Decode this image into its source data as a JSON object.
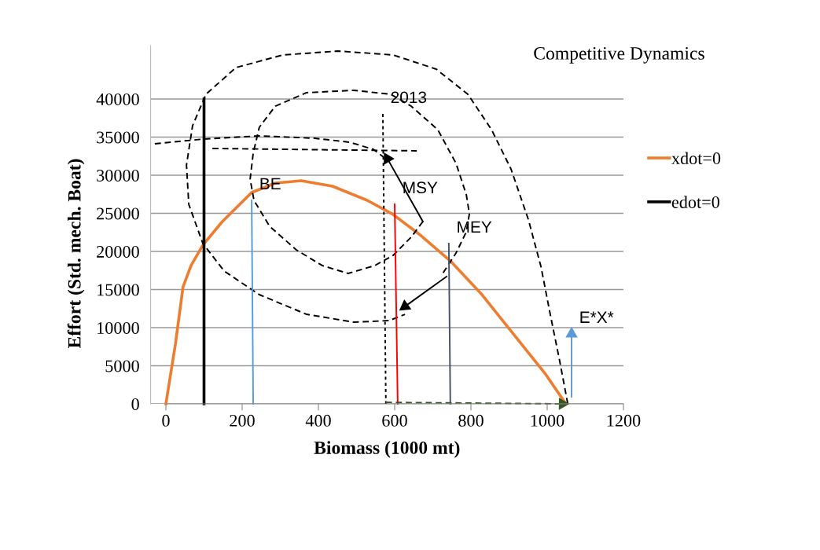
{
  "chart_data": {
    "type": "line",
    "title": "Competitive Dynamics",
    "xlabel": "Biomass (1000 mt)",
    "ylabel": "Effort (Std. mech. Boat)",
    "xlim": [
      -40,
      1200
    ],
    "ylim": [
      0,
      47000
    ],
    "xticks": [
      0,
      200,
      400,
      600,
      800,
      1000,
      1200
    ],
    "yticks": [
      0,
      5000,
      10000,
      15000,
      20000,
      25000,
      30000,
      35000,
      40000
    ],
    "grid": "y",
    "legend": "right",
    "line_style": "solid",
    "series": [
      {
        "name": "xdot=0",
        "color": "#ed7d31",
        "x": [
          0,
          25,
          45,
          66,
          97,
          148,
          225,
          287,
          355,
          437,
          528,
          596,
          664,
          746,
          829,
          911,
          994,
          1049
        ],
        "values": [
          0,
          7840,
          15360,
          18150,
          20830,
          23920,
          27730,
          28970,
          29280,
          28560,
          26700,
          24850,
          22270,
          18760,
          14330,
          9180,
          4020,
          0
        ]
      },
      {
        "name": "edot=0",
        "color": "#000000",
        "x": [
          100,
          100
        ],
        "values": [
          0,
          40000
        ]
      },
      {
        "color": "#000000",
        "line_style": "dashed",
        "x": [
          1054,
          1033,
          1008,
          984,
          951,
          905,
          854,
          792,
          709,
          596,
          452,
          307,
          184,
          105,
          70,
          54,
          60,
          97,
          153,
          245,
          369,
          493,
          586,
          627
        ],
        "values": [
          0,
          5570,
          11750,
          17940,
          24130,
          30830,
          35980,
          40620,
          43920,
          45780,
          46290,
          45780,
          44130,
          40620,
          36500,
          31340,
          26190,
          21030,
          17420,
          14330,
          11750,
          10720,
          10930,
          11750
        ]
      },
      {
        "color": "#000000",
        "line_style": "dashed",
        "x": [
          674,
          643,
          596,
          548,
          478,
          410,
          342,
          272,
          231,
          221,
          229,
          245,
          287,
          369,
          493,
          590,
          643,
          713,
          761,
          788,
          796,
          788,
          761,
          726
        ],
        "values": [
          23920,
          21860,
          19490,
          18150,
          17110,
          18150,
          20210,
          23300,
          26700,
          29490,
          32890,
          36290,
          39070,
          40830,
          41140,
          40620,
          39070,
          35980,
          31550,
          27420,
          24950,
          22580,
          19790,
          17110
        ]
      },
      {
        "color": "#000000",
        "line_style": "dashed",
        "x": [
          -29,
          101,
          245,
          390,
          482,
          544,
          571
        ],
        "values": [
          34130,
          34750,
          35160,
          34850,
          34330,
          33400,
          32370
        ]
      },
      {
        "color": "#000000",
        "line_style": "dashed",
        "x": [
          122,
          658
        ],
        "values": [
          33510,
          33200
        ]
      },
      {
        "color": "#000000",
        "line_style": "dotted",
        "x": [
          569,
          577
        ],
        "values": [
          38040,
          0
        ]
      },
      {
        "color": "#5b9bd5",
        "x": [
          229,
          225
        ],
        "values": [
          0,
          26700
        ]
      },
      {
        "color": "#ff0000",
        "x": [
          608,
          600
        ],
        "values": [
          0,
          26190
        ]
      },
      {
        "color": "#44546a",
        "x": [
          746,
          742
        ],
        "values": [
          0,
          21030
        ]
      },
      {
        "color": "#000000",
        "marker": "triangle",
        "x": [
          674,
          581
        ],
        "values": [
          23920,
          32170
        ]
      },
      {
        "color": "#000000",
        "marker": "triangle",
        "x": [
          736,
          627
        ],
        "values": [
          16700,
          12780
        ]
      },
      {
        "color": "#5b9bd5",
        "marker": "triangle",
        "x": [
          1064,
          1064
        ],
        "values": [
          930,
          9180
        ]
      },
      {
        "color": "#375623",
        "line_style": "dashed",
        "marker": "triangle",
        "x": [
          577,
          1040
        ],
        "values": [
          200,
          0
        ]
      }
    ],
    "annotations": [
      {
        "text": "BE",
        "x": 225,
        "y": 26700
      },
      {
        "text": "2013",
        "x": 569,
        "y": 38040
      },
      {
        "text": "MSY",
        "x": 600,
        "y": 26190
      },
      {
        "text": "MEY",
        "x": 742,
        "y": 21030
      },
      {
        "text": "E*X*",
        "x": 1064,
        "y": 9180
      }
    ]
  }
}
